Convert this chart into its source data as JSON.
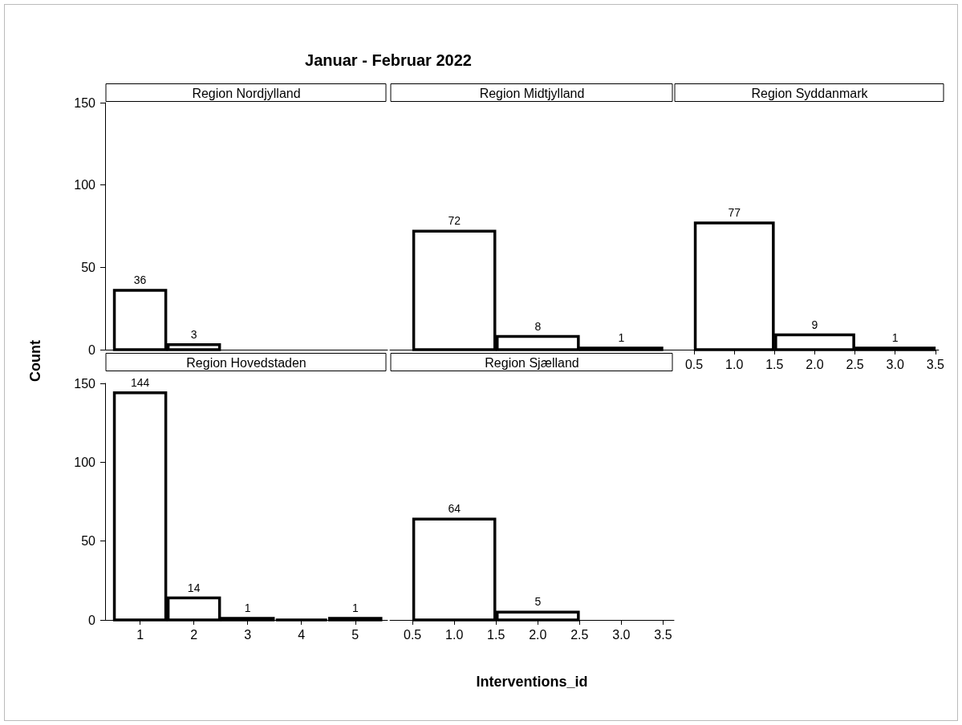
{
  "chart_data": [
    {
      "type": "histogram",
      "title": "Region Nordjylland",
      "annotations": [
        "Januar - Februar 2022"
      ],
      "ylabel": "Count",
      "bins": [
        0.5,
        1.5,
        2.5
      ],
      "values": [
        36,
        3
      ],
      "data_labels": true,
      "color": "#000000",
      "xlim": [
        0.35,
        5.6
      ],
      "ylim": [
        0,
        150
      ],
      "yticks": [
        0,
        50,
        100,
        150
      ],
      "tick_labels": "y"
    },
    {
      "type": "histogram",
      "title": "Region Midtjylland",
      "bins": [
        0.5,
        1.5,
        2.5,
        3.5
      ],
      "values": [
        72,
        8,
        1
      ],
      "data_labels": true,
      "color": "#000000",
      "xlim": [
        0.23,
        3.63
      ],
      "ylim": [
        0,
        150
      ],
      "tick_labels": false
    },
    {
      "type": "histogram",
      "title": "Region Syddanmark",
      "bins": [
        0.5,
        1.5,
        2.5,
        3.5
      ],
      "values": [
        77,
        9,
        1
      ],
      "data_labels": true,
      "color": "#000000",
      "xlim": [
        0.25,
        3.54
      ],
      "xticks": [
        0.5,
        {
          "value": 1,
          "label": "1.0"
        },
        1.5,
        {
          "value": 2,
          "label": "2.0"
        },
        2.5,
        {
          "value": 3,
          "label": "3.0"
        },
        3.5
      ],
      "ylim": [
        0,
        150
      ],
      "tick_labels": "x"
    },
    {
      "type": "histogram",
      "title": "Region Hovedstaden",
      "bins": [
        0.5,
        1.5,
        2.5,
        3.5,
        4.5,
        5.5
      ],
      "values": [
        144,
        14,
        1,
        0,
        1
      ],
      "value_labels": [
        "144",
        "14",
        "1",
        null,
        "1"
      ],
      "color": "#000000",
      "xlim": [
        0.35,
        5.6
      ],
      "xticks": [
        1,
        2,
        3,
        4,
        5
      ],
      "ylim": [
        0,
        150
      ],
      "yticks": [
        0,
        50,
        100,
        150
      ]
    },
    {
      "type": "histogram",
      "title": "Region Sjælland",
      "xlabel": "Interventions_id",
      "bins": [
        0.5,
        1.5,
        2.5
      ],
      "values": [
        64,
        5
      ],
      "data_labels": true,
      "color": "#000000",
      "xlim": [
        0.23,
        3.63
      ],
      "xticks": [
        0.5,
        {
          "value": 1,
          "label": "1.0"
        },
        1.5,
        {
          "value": 2,
          "label": "2.0"
        },
        2.5,
        {
          "value": 3,
          "label": "3.0"
        },
        3.5
      ],
      "ylim": [
        0,
        150
      ],
      "tick_labels": "x"
    }
  ]
}
